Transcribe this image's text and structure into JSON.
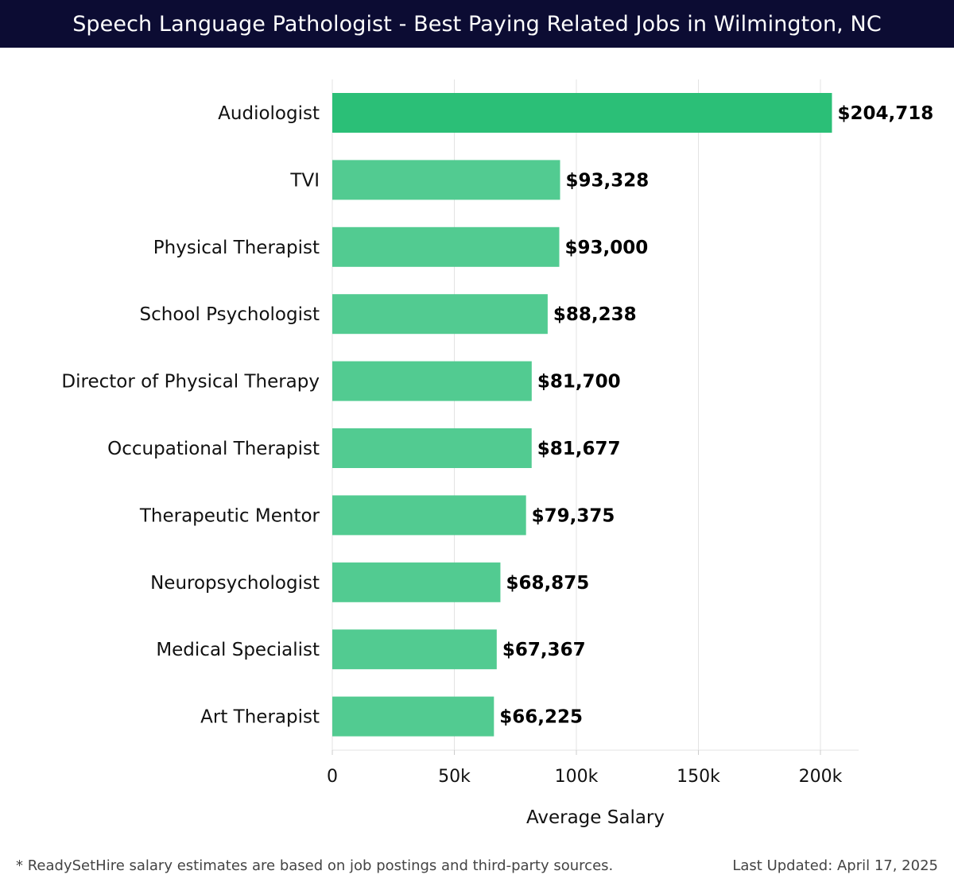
{
  "header": {
    "title": "Speech Language Pathologist - Best Paying Related Jobs in Wilmington, NC"
  },
  "chart_data": {
    "type": "bar",
    "orientation": "horizontal",
    "title": "Speech Language Pathologist - Best Paying Related Jobs in Wilmington, NC",
    "xlabel": "Average Salary",
    "ylabel": "",
    "categories": [
      "Audiologist",
      "TVI",
      "Physical Therapist",
      "School Psychologist",
      "Director of Physical Therapy",
      "Occupational Therapist",
      "Therapeutic Mentor",
      "Neuropsychologist",
      "Medical Specialist",
      "Art Therapist"
    ],
    "values": [
      204718,
      93328,
      93000,
      88238,
      81700,
      81677,
      79375,
      68875,
      67367,
      66225
    ],
    "value_labels": [
      "$204,718",
      "$93,328",
      "$93,000",
      "$88,238",
      "$81,700",
      "$81,677",
      "$79,375",
      "$68,875",
      "$67,367",
      "$66,225"
    ],
    "xlim": [
      0,
      215000
    ],
    "xticks": [
      0,
      50000,
      100000,
      150000,
      200000
    ],
    "xtick_labels": [
      "0",
      "50k",
      "100k",
      "150k",
      "200k"
    ],
    "grid": true,
    "colors": {
      "top_bar": "#2bbf77",
      "bar": "#52cb91",
      "grid": "#e3e3e3"
    }
  },
  "footer": {
    "note": "* ReadySetHire salary estimates are based on job postings and third-party sources.",
    "updated": "Last Updated: April 17, 2025"
  }
}
